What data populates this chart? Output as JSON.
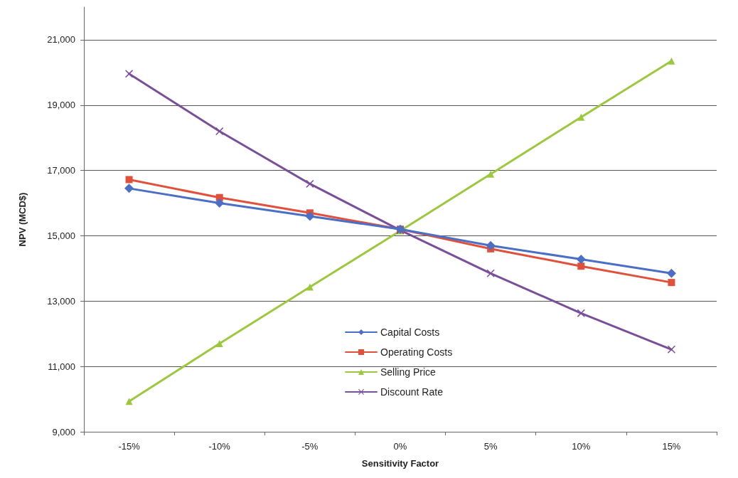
{
  "chart_data": {
    "type": "line",
    "xlabel": "Sensitivity Factor",
    "ylabel": "NPV (MCD$)",
    "categories": [
      "-15%",
      "-10%",
      "-5%",
      "0%",
      "5%",
      "10%",
      "15%"
    ],
    "ylim": [
      9000,
      22000
    ],
    "yticks": [
      {
        "value": 9000,
        "label": "9,000"
      },
      {
        "value": 11000,
        "label": "11,000"
      },
      {
        "value": 13000,
        "label": "13,000"
      },
      {
        "value": 15000,
        "label": "15,000"
      },
      {
        "value": 17000,
        "label": "17,000"
      },
      {
        "value": 19000,
        "label": "19,000"
      },
      {
        "value": 21000,
        "label": "21,000"
      }
    ],
    "grid": "y",
    "legend": "bottom",
    "line_style": "solid",
    "series": [
      {
        "name": "Capital Costs",
        "color": "#4a6fc5",
        "marker": "diamond",
        "values": [
          16450,
          16000,
          15600,
          15200,
          14700,
          14280,
          13850
        ]
      },
      {
        "name": "Operating Costs",
        "color": "#e0503a",
        "marker": "square",
        "values": [
          16720,
          16170,
          15700,
          15200,
          14600,
          14070,
          13570
        ]
      },
      {
        "name": "Selling Price",
        "color": "#9bc83c",
        "marker": "triangle",
        "values": [
          9930,
          11700,
          13430,
          15150,
          16890,
          18630,
          20350
        ]
      },
      {
        "name": "Discount Rate",
        "color": "#7a4f9a",
        "marker": "cross",
        "values": [
          19960,
          18200,
          16590,
          15170,
          13850,
          12630,
          11520
        ]
      }
    ]
  }
}
